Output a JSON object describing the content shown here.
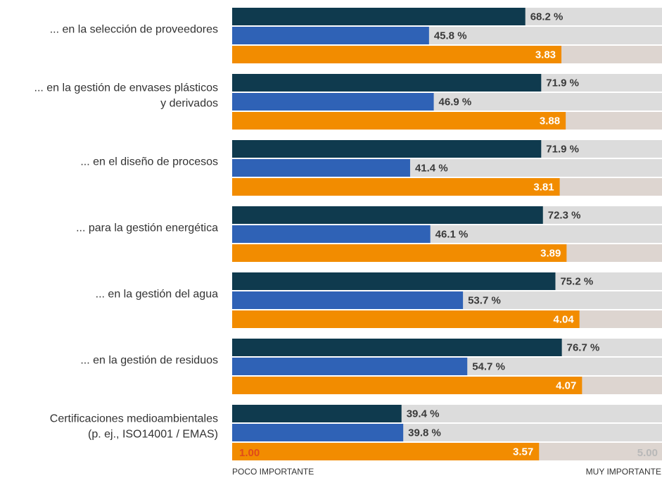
{
  "chart_data": {
    "type": "bar",
    "orientation": "horizontal",
    "categories": [
      [
        "... en la selección de proveedores"
      ],
      [
        "... en la gestión de envases plásticos",
        "y derivados"
      ],
      [
        "... en el diseño de procesos"
      ],
      [
        "... para la gestión energética"
      ],
      [
        "... en la gestión del agua"
      ],
      [
        "... en la gestión de residuos"
      ],
      [
        "Certificaciones medioambientales",
        "(p. ej., ISO14001 / EMAS)"
      ]
    ],
    "xlim": [
      0,
      100
    ],
    "x2lim": [
      0,
      5
    ],
    "series": [
      {
        "color": "#0f3a4e",
        "track_color": "#dcdcdc",
        "values": [
          68.2,
          71.9,
          71.9,
          72.3,
          75.2,
          76.7,
          39.4
        ],
        "value_labels": [
          "68.2 %",
          "71.9 %",
          "71.9 %",
          "72.3 %",
          "75.2 %",
          "76.7 %",
          "39.4 %"
        ]
      },
      {
        "color": "#2f62b6",
        "track_color": "#dcdcdc",
        "values": [
          45.8,
          46.9,
          41.4,
          46.1,
          53.7,
          54.7,
          39.8
        ],
        "value_labels": [
          "45.8 %",
          "46.9 %",
          "41.4 %",
          "46.1 %",
          "53.7 %",
          "54.7 %",
          "39.8 %"
        ]
      },
      {
        "color": "#f28c00",
        "track_color": "#ddd5d0",
        "axis": "x2",
        "values": [
          3.83,
          3.88,
          3.81,
          3.89,
          4.04,
          4.07,
          3.57
        ],
        "value_labels": [
          "3.83",
          "3.88",
          "3.81",
          "3.89",
          "4.04",
          "4.07",
          "3.57"
        ]
      }
    ],
    "scale_labels": [
      "1.00",
      "5.00"
    ],
    "scale_captions": [
      "POCO IMPORTANTE",
      "MUY IMPORTANTE"
    ]
  }
}
